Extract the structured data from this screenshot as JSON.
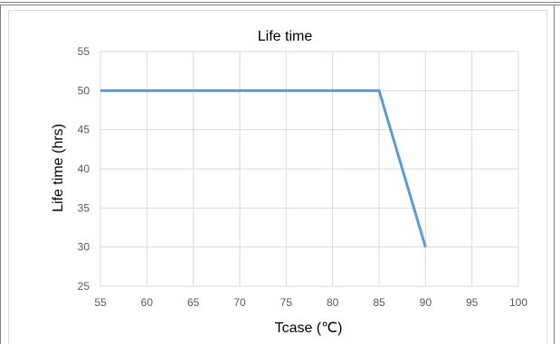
{
  "chart_data": {
    "type": "line",
    "title": "Life time",
    "xlabel": "Tcase (℃)",
    "ylabel": "Life time (hrs)",
    "xlim": [
      55,
      100
    ],
    "ylim": [
      25,
      55
    ],
    "x_ticks": [
      55,
      60,
      65,
      70,
      75,
      80,
      85,
      90,
      95,
      100
    ],
    "y_ticks": [
      25,
      30,
      35,
      40,
      45,
      50,
      55
    ],
    "grid": true,
    "legend": "none",
    "series": [
      {
        "color": "#5b9bd5",
        "points": [
          {
            "x": 55,
            "y": 50
          },
          {
            "x": 85,
            "y": 50
          },
          {
            "x": 90,
            "y": 30
          }
        ]
      }
    ]
  }
}
